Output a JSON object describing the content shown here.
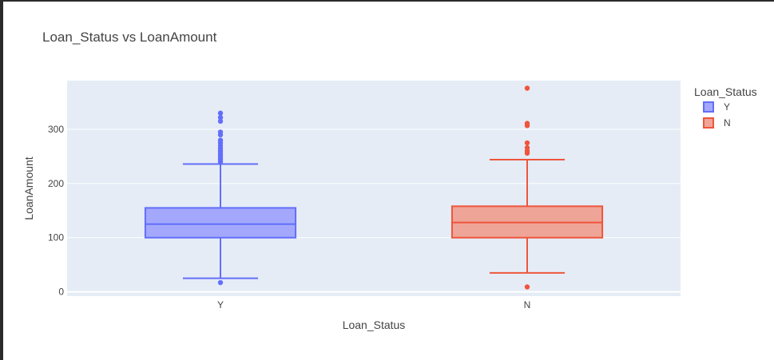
{
  "chart_data": {
    "type": "box",
    "title": "Loan_Status vs LoanAmount",
    "xlabel": "Loan_Status",
    "ylabel": "LoanAmount",
    "categories": [
      "Y",
      "N"
    ],
    "ylim": [
      -8,
      390
    ],
    "yticks": [
      0,
      100,
      200,
      300
    ],
    "grid": true,
    "legend": {
      "title": "Loan_Status",
      "position": "top-right",
      "entries": [
        "Y",
        "N"
      ]
    },
    "series": [
      {
        "name": "Y",
        "color": "#636efa",
        "fill": "#a3a8fc",
        "lower_fence": 25,
        "q1": 100,
        "median": 125,
        "q3": 155,
        "upper_fence": 236,
        "outliers": [
          17,
          240,
          244,
          248,
          252,
          256,
          260,
          265,
          270,
          275,
          280,
          290,
          295,
          315,
          322,
          330
        ]
      },
      {
        "name": "N",
        "color": "#ef553b",
        "fill": "#eea598",
        "lower_fence": 35,
        "q1": 100,
        "median": 128,
        "q3": 158,
        "upper_fence": 244,
        "outliers": [
          9,
          256,
          260,
          266,
          275,
          307,
          311,
          376
        ]
      }
    ]
  }
}
